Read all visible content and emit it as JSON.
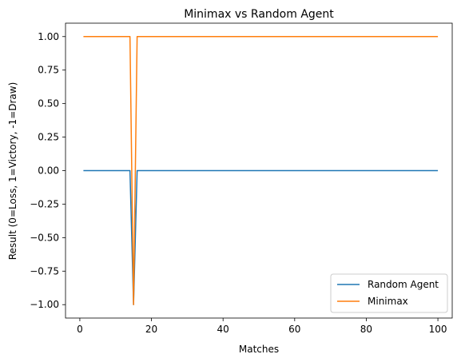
{
  "chart_data": {
    "type": "line",
    "title": "Minimax vs Random Agent",
    "xlabel": "Matches",
    "ylabel": "Result (0=Loss, 1=Victory, -1=Draw)",
    "xlim": [
      -4,
      104
    ],
    "ylim": [
      -1.1,
      1.1
    ],
    "xticks": [
      0,
      20,
      40,
      60,
      80,
      100
    ],
    "xtick_labels": [
      "0",
      "20",
      "40",
      "60",
      "80",
      "100"
    ],
    "yticks": [
      -1.0,
      -0.75,
      -0.5,
      -0.25,
      0.0,
      0.25,
      0.5,
      0.75,
      1.0
    ],
    "ytick_labels": [
      "−1.00",
      "−0.75",
      "−0.50",
      "−0.25",
      "0.00",
      "0.25",
      "0.50",
      "0.75",
      "1.00"
    ],
    "grid": false,
    "legend_position": "lower-right",
    "series": [
      {
        "name": "Random Agent",
        "color": "#1f77b4",
        "x": [
          1,
          14,
          15,
          16,
          100
        ],
        "y": [
          0,
          0,
          -1,
          0,
          0
        ]
      },
      {
        "name": "Minimax",
        "color": "#ff7f0e",
        "x": [
          1,
          14,
          15,
          16,
          100
        ],
        "y": [
          1,
          1,
          -1,
          1,
          1
        ]
      }
    ]
  }
}
